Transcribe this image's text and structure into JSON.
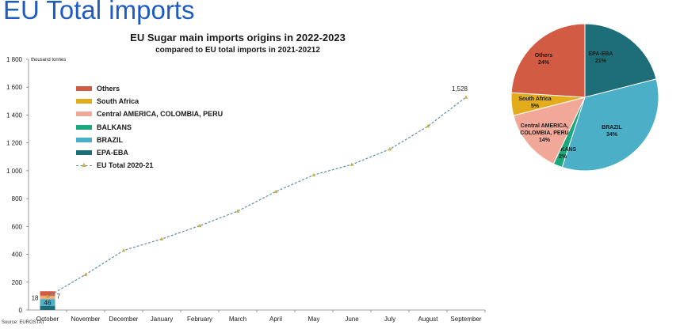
{
  "page": {
    "title": "EU Total imports",
    "source": "Source: EUROSTAT"
  },
  "chart_data": [
    {
      "type": "line",
      "title": "EU Sugar main imports origins in 2022-2023",
      "subtitle": "compared to EU total imports in 2021-20212",
      "ylabel": "thousand tonnes",
      "ylim": [
        0,
        1800
      ],
      "yticks": [
        0,
        200,
        400,
        600,
        800,
        1000,
        1200,
        1400,
        1600,
        1800
      ],
      "ytick_labels": [
        "0",
        "200",
        "400",
        "600",
        "800",
        "1 000",
        "1 200",
        "1 400",
        "1 600",
        "1 800"
      ],
      "categories": [
        "October",
        "November",
        "December",
        "January",
        "February",
        "March",
        "April",
        "May",
        "June",
        "July",
        "August",
        "September"
      ],
      "series": [
        {
          "name": "EU Total 2020-21",
          "style": "dashed-line-triangle",
          "color": "#5f8fa8",
          "values": [
            95,
            255,
            428,
            510,
            605,
            710,
            850,
            970,
            1045,
            1155,
            1320,
            1528
          ]
        }
      ],
      "stacked_bar": {
        "category": "October",
        "segments": [
          {
            "name": "EPA-EBA",
            "value": 30,
            "color": "#1d6e78"
          },
          {
            "name": "BRAZIL",
            "value": 46,
            "color": "#4bafc7"
          },
          {
            "name": "BALKANS",
            "value": 2,
            "color": "#1ca77c"
          },
          {
            "name": "Central AMERICA, COLOMBIA, PERU",
            "value": 18,
            "color": "#f2a899"
          },
          {
            "name": "South Africa",
            "value": 7,
            "color": "#e2ac1c"
          },
          {
            "name": "Others",
            "value": 32,
            "color": "#d25b43"
          }
        ],
        "labels": [
          "18",
          "46",
          "7"
        ]
      },
      "annotations": [
        {
          "text": "1,528",
          "category": "September"
        }
      ],
      "legend": [
        {
          "label": "Others",
          "color": "#d25b43",
          "kind": "bar"
        },
        {
          "label": "South Africa",
          "color": "#e2ac1c",
          "kind": "bar"
        },
        {
          "label": "Central AMERICA, COLOMBIA, PERU",
          "color": "#f2a899",
          "kind": "bar"
        },
        {
          "label": "BALKANS",
          "color": "#1ca77c",
          "kind": "bar"
        },
        {
          "label": "BRAZIL",
          "color": "#4bafc7",
          "kind": "bar"
        },
        {
          "label": "EPA-EBA",
          "color": "#1d6e78",
          "kind": "bar"
        },
        {
          "label": "EU Total 2020-21",
          "color": "#5f8fa8",
          "kind": "line"
        }
      ],
      "legend_position": "upper-left",
      "grid": false
    },
    {
      "type": "pie",
      "slices": [
        {
          "name": "EPA-EBA",
          "pct": 21,
          "label": "21%",
          "color": "#1d6e78"
        },
        {
          "name": "BRAZIL",
          "pct": 34,
          "label": "34%",
          "color": "#4bafc7"
        },
        {
          "name": "BALKANS",
          "pct": 2,
          "label": "2%",
          "color": "#1ca77c"
        },
        {
          "name": "Central AMERICA, COLOMBIA, PERU",
          "pct": 14,
          "label": "14%",
          "color": "#f2a899"
        },
        {
          "name": "South Africa",
          "pct": 5,
          "label": "5%",
          "color": "#e2ac1c"
        },
        {
          "name": "Others",
          "pct": 24,
          "label": "24%",
          "color": "#d25b43"
        }
      ]
    }
  ]
}
